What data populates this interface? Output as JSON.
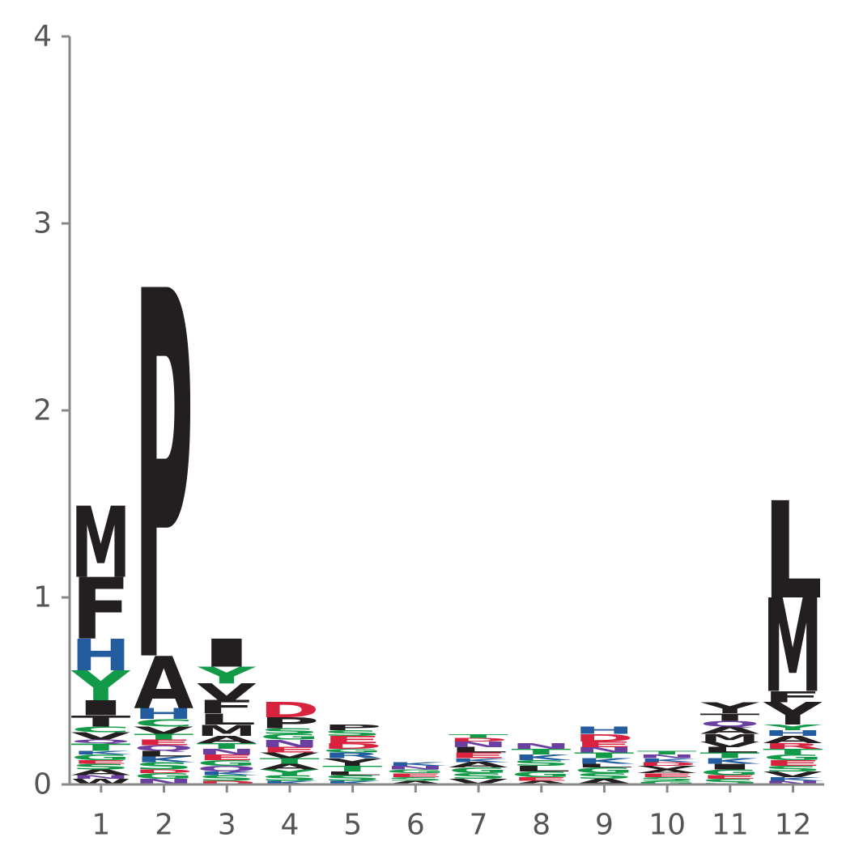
{
  "chart_data": {
    "type": "sequence-logo",
    "title": "",
    "xlabel": "",
    "ylabel": "",
    "ylim": [
      0,
      4
    ],
    "yticks": [
      "0",
      "1",
      "2",
      "3",
      "4"
    ],
    "positions": [
      "1",
      "2",
      "3",
      "4",
      "5",
      "6",
      "7",
      "8",
      "9",
      "10",
      "11",
      "12"
    ],
    "grid": false,
    "legend": "none",
    "colors": {
      "hydrophobic": "#231f20",
      "polar": "#129a48",
      "basic": "#235da0",
      "acidic": "#d9223e",
      "amide": "#6a3fa0",
      "background": "#ffffff",
      "axis": "#888888"
    },
    "columns": [
      {
        "pos": "1",
        "stack": [
          {
            "letter": "W",
            "height": 0.03,
            "class": "hydrophobic"
          },
          {
            "letter": "N",
            "height": 0.02,
            "class": "amide"
          },
          {
            "letter": "A",
            "height": 0.03,
            "class": "hydrophobic"
          },
          {
            "letter": "S",
            "height": 0.03,
            "class": "polar"
          },
          {
            "letter": "E",
            "height": 0.02,
            "class": "acidic"
          },
          {
            "letter": "G",
            "height": 0.03,
            "class": "polar"
          },
          {
            "letter": "K",
            "height": 0.02,
            "class": "basic"
          },
          {
            "letter": "T",
            "height": 0.04,
            "class": "polar"
          },
          {
            "letter": "Q",
            "height": 0.02,
            "class": "amide"
          },
          {
            "letter": "V",
            "height": 0.04,
            "class": "hydrophobic"
          },
          {
            "letter": "C",
            "height": 0.03,
            "class": "polar"
          },
          {
            "letter": "T",
            "height": 0.06,
            "class": "hydrophobic"
          },
          {
            "letter": "I",
            "height": 0.08,
            "class": "hydrophobic"
          },
          {
            "letter": "Y",
            "height": 0.16,
            "class": "polar"
          },
          {
            "letter": "H",
            "height": 0.17,
            "class": "basic"
          },
          {
            "letter": "F",
            "height": 0.33,
            "class": "hydrophobic"
          },
          {
            "letter": "M",
            "height": 0.38,
            "class": "hydrophobic"
          }
        ]
      },
      {
        "pos": "2",
        "stack": [
          {
            "letter": "N",
            "height": 0.03,
            "class": "amide"
          },
          {
            "letter": "G",
            "height": 0.03,
            "class": "polar"
          },
          {
            "letter": "D",
            "height": 0.02,
            "class": "acidic"
          },
          {
            "letter": "S",
            "height": 0.04,
            "class": "polar"
          },
          {
            "letter": "K",
            "height": 0.03,
            "class": "basic"
          },
          {
            "letter": "L",
            "height": 0.03,
            "class": "hydrophobic"
          },
          {
            "letter": "Q",
            "height": 0.03,
            "class": "amide"
          },
          {
            "letter": "E",
            "height": 0.03,
            "class": "acidic"
          },
          {
            "letter": "T",
            "height": 0.03,
            "class": "polar"
          },
          {
            "letter": "V",
            "height": 0.04,
            "class": "hydrophobic"
          },
          {
            "letter": "C",
            "height": 0.04,
            "class": "polar"
          },
          {
            "letter": "H",
            "height": 0.06,
            "class": "basic"
          },
          {
            "letter": "A",
            "height": 0.28,
            "class": "hydrophobic"
          },
          {
            "letter": "P",
            "height": 1.97,
            "class": "hydrophobic"
          }
        ]
      },
      {
        "pos": "3",
        "stack": [
          {
            "letter": "D",
            "height": 0.02,
            "class": "acidic"
          },
          {
            "letter": "S",
            "height": 0.03,
            "class": "polar"
          },
          {
            "letter": "K",
            "height": 0.02,
            "class": "basic"
          },
          {
            "letter": "Q",
            "height": 0.03,
            "class": "amide"
          },
          {
            "letter": "G",
            "height": 0.03,
            "class": "polar"
          },
          {
            "letter": "E",
            "height": 0.03,
            "class": "acidic"
          },
          {
            "letter": "N",
            "height": 0.03,
            "class": "amide"
          },
          {
            "letter": "T",
            "height": 0.03,
            "class": "polar"
          },
          {
            "letter": "A",
            "height": 0.04,
            "class": "hydrophobic"
          },
          {
            "letter": "M",
            "height": 0.06,
            "class": "hydrophobic"
          },
          {
            "letter": "L",
            "height": 0.06,
            "class": "hydrophobic"
          },
          {
            "letter": "F",
            "height": 0.07,
            "class": "hydrophobic"
          },
          {
            "letter": "V",
            "height": 0.09,
            "class": "hydrophobic"
          },
          {
            "letter": "Y",
            "height": 0.09,
            "class": "polar"
          },
          {
            "letter": "I",
            "height": 0.15,
            "class": "hydrophobic"
          }
        ]
      },
      {
        "pos": "4",
        "stack": [
          {
            "letter": "K",
            "height": 0.02,
            "class": "basic"
          },
          {
            "letter": "S",
            "height": 0.03,
            "class": "polar"
          },
          {
            "letter": "Y",
            "height": 0.03,
            "class": "polar"
          },
          {
            "letter": "A",
            "height": 0.03,
            "class": "hydrophobic"
          },
          {
            "letter": "T",
            "height": 0.03,
            "class": "polar"
          },
          {
            "letter": "V",
            "height": 0.03,
            "class": "hydrophobic"
          },
          {
            "letter": "E",
            "height": 0.03,
            "class": "acidic"
          },
          {
            "letter": "N",
            "height": 0.04,
            "class": "amide"
          },
          {
            "letter": "G",
            "height": 0.03,
            "class": "polar"
          },
          {
            "letter": "S",
            "height": 0.03,
            "class": "polar"
          },
          {
            "letter": "P",
            "height": 0.06,
            "class": "hydrophobic"
          },
          {
            "letter": "D",
            "height": 0.08,
            "class": "acidic"
          }
        ]
      },
      {
        "pos": "5",
        "stack": [
          {
            "letter": "K",
            "height": 0.02,
            "class": "basic"
          },
          {
            "letter": "S",
            "height": 0.03,
            "class": "polar"
          },
          {
            "letter": "L",
            "height": 0.02,
            "class": "hydrophobic"
          },
          {
            "letter": "T",
            "height": 0.03,
            "class": "polar"
          },
          {
            "letter": "Y",
            "height": 0.04,
            "class": "hydrophobic"
          },
          {
            "letter": "R",
            "height": 0.03,
            "class": "basic"
          },
          {
            "letter": "G",
            "height": 0.02,
            "class": "polar"
          },
          {
            "letter": "D",
            "height": 0.03,
            "class": "acidic"
          },
          {
            "letter": "E",
            "height": 0.04,
            "class": "acidic"
          },
          {
            "letter": "S",
            "height": 0.03,
            "class": "polar"
          },
          {
            "letter": "P",
            "height": 0.03,
            "class": "hydrophobic"
          }
        ]
      },
      {
        "pos": "6",
        "stack": [
          {
            "letter": "A",
            "height": 0.02,
            "class": "hydrophobic"
          },
          {
            "letter": "S",
            "height": 0.02,
            "class": "polar"
          },
          {
            "letter": "E",
            "height": 0.02,
            "class": "acidic"
          },
          {
            "letter": "G",
            "height": 0.02,
            "class": "polar"
          },
          {
            "letter": "N",
            "height": 0.02,
            "class": "amide"
          },
          {
            "letter": "K",
            "height": 0.02,
            "class": "basic"
          }
        ]
      },
      {
        "pos": "7",
        "stack": [
          {
            "letter": "V",
            "height": 0.03,
            "class": "hydrophobic"
          },
          {
            "letter": "S",
            "height": 0.03,
            "class": "polar"
          },
          {
            "letter": "G",
            "height": 0.03,
            "class": "polar"
          },
          {
            "letter": "A",
            "height": 0.03,
            "class": "hydrophobic"
          },
          {
            "letter": "K",
            "height": 0.02,
            "class": "basic"
          },
          {
            "letter": "E",
            "height": 0.03,
            "class": "acidic"
          },
          {
            "letter": "L",
            "height": 0.03,
            "class": "hydrophobic"
          },
          {
            "letter": "N",
            "height": 0.03,
            "class": "amide"
          },
          {
            "letter": "D",
            "height": 0.02,
            "class": "acidic"
          },
          {
            "letter": "T",
            "height": 0.02,
            "class": "polar"
          }
        ]
      },
      {
        "pos": "8",
        "stack": [
          {
            "letter": "A",
            "height": 0.02,
            "class": "hydrophobic"
          },
          {
            "letter": "E",
            "height": 0.02,
            "class": "acidic"
          },
          {
            "letter": "G",
            "height": 0.03,
            "class": "polar"
          },
          {
            "letter": "L",
            "height": 0.03,
            "class": "hydrophobic"
          },
          {
            "letter": "S",
            "height": 0.03,
            "class": "polar"
          },
          {
            "letter": "K",
            "height": 0.03,
            "class": "basic"
          },
          {
            "letter": "T",
            "height": 0.03,
            "class": "polar"
          },
          {
            "letter": "N",
            "height": 0.03,
            "class": "amide"
          }
        ]
      },
      {
        "pos": "9",
        "stack": [
          {
            "letter": "A",
            "height": 0.03,
            "class": "hydrophobic"
          },
          {
            "letter": "S",
            "height": 0.03,
            "class": "polar"
          },
          {
            "letter": "G",
            "height": 0.03,
            "class": "polar"
          },
          {
            "letter": "L",
            "height": 0.02,
            "class": "hydrophobic"
          },
          {
            "letter": "K",
            "height": 0.03,
            "class": "basic"
          },
          {
            "letter": "T",
            "height": 0.03,
            "class": "polar"
          },
          {
            "letter": "N",
            "height": 0.03,
            "class": "amide"
          },
          {
            "letter": "E",
            "height": 0.03,
            "class": "acidic"
          },
          {
            "letter": "D",
            "height": 0.04,
            "class": "acidic"
          },
          {
            "letter": "H",
            "height": 0.04,
            "class": "basic"
          }
        ]
      },
      {
        "pos": "10",
        "stack": [
          {
            "letter": "G",
            "height": 0.02,
            "class": "polar"
          },
          {
            "letter": "S",
            "height": 0.02,
            "class": "polar"
          },
          {
            "letter": "E",
            "height": 0.02,
            "class": "acidic"
          },
          {
            "letter": "A",
            "height": 0.02,
            "class": "hydrophobic"
          },
          {
            "letter": "V",
            "height": 0.02,
            "class": "hydrophobic"
          },
          {
            "letter": "D",
            "height": 0.02,
            "class": "acidic"
          },
          {
            "letter": "K",
            "height": 0.02,
            "class": "basic"
          },
          {
            "letter": "N",
            "height": 0.02,
            "class": "amide"
          },
          {
            "letter": "T",
            "height": 0.02,
            "class": "polar"
          }
        ]
      },
      {
        "pos": "11",
        "stack": [
          {
            "letter": "S",
            "height": 0.03,
            "class": "polar"
          },
          {
            "letter": "E",
            "height": 0.02,
            "class": "acidic"
          },
          {
            "letter": "G",
            "height": 0.03,
            "class": "polar"
          },
          {
            "letter": "I",
            "height": 0.03,
            "class": "hydrophobic"
          },
          {
            "letter": "K",
            "height": 0.03,
            "class": "basic"
          },
          {
            "letter": "T",
            "height": 0.03,
            "class": "polar"
          },
          {
            "letter": "L",
            "height": 0.03,
            "class": "hydrophobic"
          },
          {
            "letter": "V",
            "height": 0.03,
            "class": "hydrophobic"
          },
          {
            "letter": "M",
            "height": 0.04,
            "class": "hydrophobic"
          },
          {
            "letter": "A",
            "height": 0.04,
            "class": "hydrophobic"
          },
          {
            "letter": "Q",
            "height": 0.03,
            "class": "amide"
          },
          {
            "letter": "T",
            "height": 0.04,
            "class": "hydrophobic"
          },
          {
            "letter": "Y",
            "height": 0.06,
            "class": "hydrophobic"
          }
        ]
      },
      {
        "pos": "12",
        "stack": [
          {
            "letter": "N",
            "height": 0.02,
            "class": "amide"
          },
          {
            "letter": "K",
            "height": 0.02,
            "class": "basic"
          },
          {
            "letter": "V",
            "height": 0.03,
            "class": "hydrophobic"
          },
          {
            "letter": "S",
            "height": 0.03,
            "class": "polar"
          },
          {
            "letter": "E",
            "height": 0.03,
            "class": "acidic"
          },
          {
            "letter": "G",
            "height": 0.03,
            "class": "polar"
          },
          {
            "letter": "T",
            "height": 0.03,
            "class": "polar"
          },
          {
            "letter": "R",
            "height": 0.03,
            "class": "acidic"
          },
          {
            "letter": "A",
            "height": 0.04,
            "class": "hydrophobic"
          },
          {
            "letter": "H",
            "height": 0.03,
            "class": "basic"
          },
          {
            "letter": "Y",
            "height": 0.03,
            "class": "polar"
          },
          {
            "letter": "Y",
            "height": 0.12,
            "class": "hydrophobic"
          },
          {
            "letter": "F",
            "height": 0.06,
            "class": "hydrophobic"
          },
          {
            "letter": "M",
            "height": 0.5,
            "class": "hydrophobic"
          },
          {
            "letter": "L",
            "height": 0.52,
            "class": "hydrophobic"
          }
        ]
      }
    ]
  }
}
